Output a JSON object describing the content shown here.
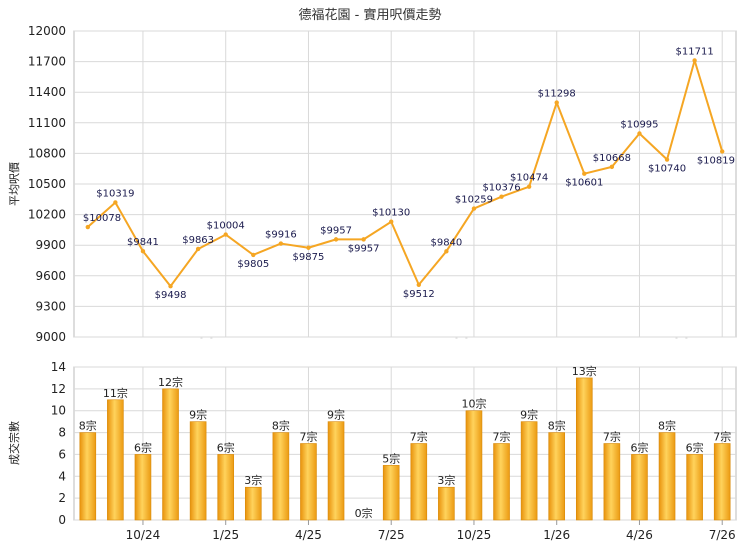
{
  "title": "德福花園 - 實用呎價走勢",
  "watermark": "科一",
  "chart_data": [
    {
      "type": "line",
      "ylabel": "平均呎價",
      "ylim": [
        9000,
        12000
      ],
      "yticks": [
        9000,
        9300,
        9600,
        9900,
        10200,
        10500,
        10800,
        11100,
        11400,
        11700,
        12000
      ],
      "grid": true,
      "color": "#f5a623",
      "series": [
        {
          "values": [
            10078,
            10319,
            9841,
            9498,
            9863,
            10004,
            9805,
            9916,
            9875,
            9957,
            9957,
            10130,
            9512,
            9840,
            10259,
            10376,
            10474,
            11298,
            10601,
            10668,
            10995,
            10740,
            11711,
            10819
          ],
          "labels": [
            "$10078",
            "$10319",
            "$9841",
            "$9498",
            "$9863",
            "$10004",
            "$9805",
            "$9916",
            "$9875",
            "$9957",
            "$9957",
            "$10130",
            "$9512",
            "$9840",
            "$10259",
            "$10376",
            "$10474",
            "$11298",
            "$10601",
            "$10668",
            "$10995",
            "$10740",
            "$11711",
            "$10819"
          ]
        }
      ]
    },
    {
      "type": "bar",
      "ylabel": "成交宗數",
      "ylim": [
        0,
        14
      ],
      "yticks": [
        0,
        2,
        4,
        6,
        8,
        10,
        12,
        14
      ],
      "grid": true,
      "color": "#f5a623",
      "xticks": [
        {
          "label": "10/24",
          "index": 2
        },
        {
          "label": "1/25",
          "index": 5
        },
        {
          "label": "4/25",
          "index": 8
        },
        {
          "label": "7/25",
          "index": 11
        },
        {
          "label": "10/25",
          "index": 14
        },
        {
          "label": "1/26",
          "index": 17
        },
        {
          "label": "4/26",
          "index": 20
        },
        {
          "label": "7/26",
          "index": 23
        }
      ],
      "series": [
        {
          "values": [
            8,
            11,
            6,
            12,
            9,
            6,
            3,
            8,
            7,
            9,
            0,
            5,
            7,
            3,
            10,
            7,
            9,
            8,
            13,
            7,
            6,
            8,
            6,
            7
          ],
          "labels": [
            "8宗",
            "11宗",
            "6宗",
            "12宗",
            "9宗",
            "6宗",
            "3宗",
            "8宗",
            "7宗",
            "9宗",
            "0宗",
            "5宗",
            "7宗",
            "3宗",
            "10宗",
            "7宗",
            "9宗",
            "8宗",
            "13宗",
            "7宗",
            "6宗",
            "8宗",
            "6宗",
            "7宗"
          ]
        }
      ]
    }
  ]
}
